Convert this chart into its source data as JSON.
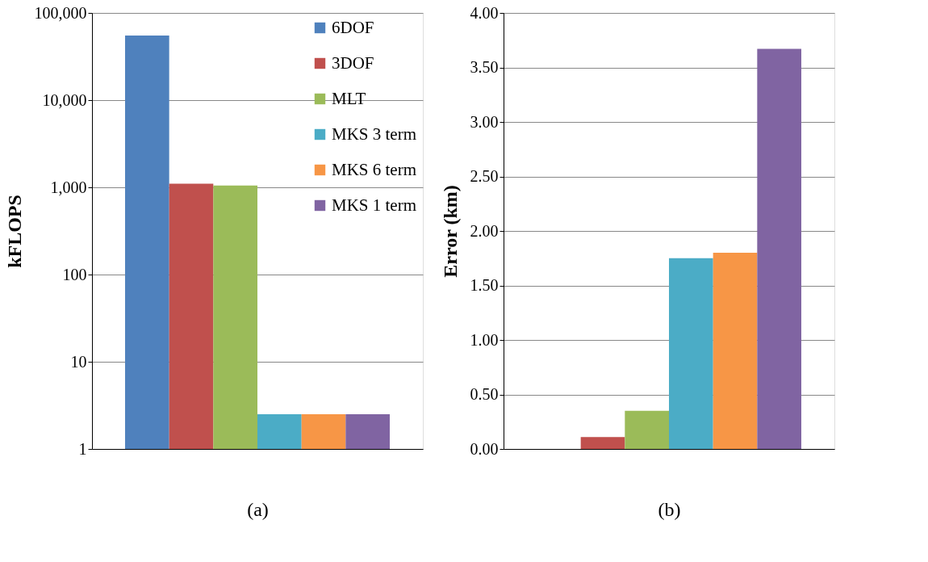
{
  "chart_data": [
    {
      "type": "bar",
      "ylabel": "kFLOPS",
      "xlabel": "(a)",
      "categories": [
        null
      ],
      "log": "y",
      "grid": "y",
      "legend": "top right",
      "ylim": [
        1,
        100000
      ],
      "yticks": [
        {
          "value": 1,
          "label": "1"
        },
        {
          "value": 10,
          "label": "10"
        },
        {
          "value": 100,
          "label": "100"
        },
        {
          "value": 1000,
          "label": "1,000"
        },
        {
          "value": 10000,
          "label": "10,000"
        },
        {
          "value": 100000,
          "label": "100,000"
        }
      ],
      "series": [
        {
          "name": "6DOF",
          "color": "#4f81bd",
          "values": [
            55000
          ]
        },
        {
          "name": "3DOF",
          "color": "#c0504d",
          "values": [
            1100
          ]
        },
        {
          "name": "MLT",
          "color": "#9bbb59",
          "values": [
            1050
          ]
        },
        {
          "name": "MKS 3 term",
          "color": "#4bacc6",
          "values": [
            2.5
          ]
        },
        {
          "name": "MKS 6 term",
          "color": "#f79646",
          "values": [
            2.5
          ]
        },
        {
          "name": "MKS 1 term",
          "color": "#8064a2",
          "values": [
            2.5
          ]
        }
      ]
    },
    {
      "type": "bar",
      "ylabel": "Error (km)",
      "xlabel": "(b)",
      "categories": [
        null
      ],
      "grid": "y",
      "ylim": [
        0,
        4
      ],
      "yticks": [
        {
          "value": 0,
          "label": "0.00"
        },
        {
          "value": 0.5,
          "label": "0.50"
        },
        {
          "value": 1,
          "label": "1.00"
        },
        {
          "value": 1.5,
          "label": "1.50"
        },
        {
          "value": 2,
          "label": "2.00"
        },
        {
          "value": 2.5,
          "label": "2.50"
        },
        {
          "value": 3,
          "label": "3.00"
        },
        {
          "value": 3.5,
          "label": "3.50"
        },
        {
          "value": 4,
          "label": "4.00"
        }
      ],
      "series": [
        {
          "color": "#4f81bd",
          "values": [
            0
          ]
        },
        {
          "color": "#c0504d",
          "values": [
            0.11
          ]
        },
        {
          "color": "#9bbb59",
          "values": [
            0.35
          ]
        },
        {
          "color": "#4bacc6",
          "values": [
            1.75
          ]
        },
        {
          "color": "#f79646",
          "values": [
            1.8
          ]
        },
        {
          "color": "#8064a2",
          "values": [
            3.67
          ]
        }
      ]
    }
  ]
}
